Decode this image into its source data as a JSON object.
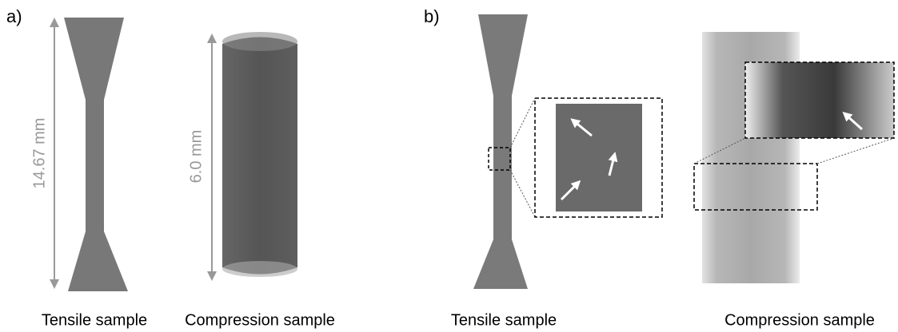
{
  "panels": [
    {
      "label": "a)",
      "dimension_labels": [
        "14.67 mm",
        "6.0 mm"
      ],
      "captions": [
        "Tensile sample",
        "Compression sample"
      ]
    },
    {
      "label": "b)",
      "captions": [
        "Tensile sample",
        "Compression sample"
      ]
    }
  ]
}
